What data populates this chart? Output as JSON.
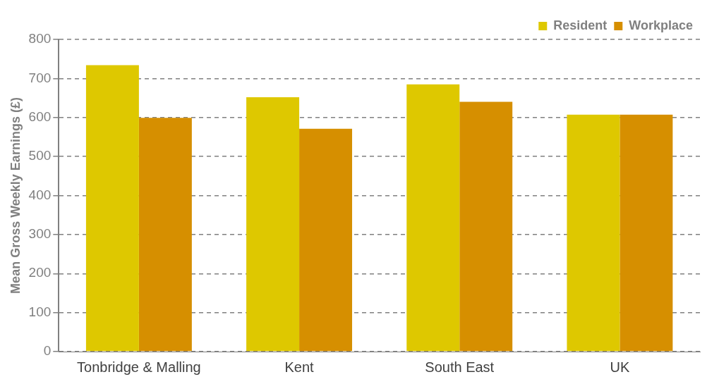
{
  "chart_data": {
    "type": "bar",
    "ylabel": "Mean Gross Weekly Earnings (£)",
    "categories": [
      "Tonbridge & Malling",
      "Kent",
      "South East",
      "UK"
    ],
    "series": [
      {
        "name": "Resident",
        "color": "#dec800",
        "values": [
          734,
          652,
          685,
          607
        ]
      },
      {
        "name": "Workplace",
        "color": "#d68f00",
        "values": [
          599,
          571,
          640,
          607
        ]
      }
    ],
    "ylim": [
      0,
      800
    ],
    "yticks": [
      0,
      100,
      200,
      300,
      400,
      500,
      600,
      700,
      800
    ],
    "grid": "y",
    "legend": "top right"
  }
}
